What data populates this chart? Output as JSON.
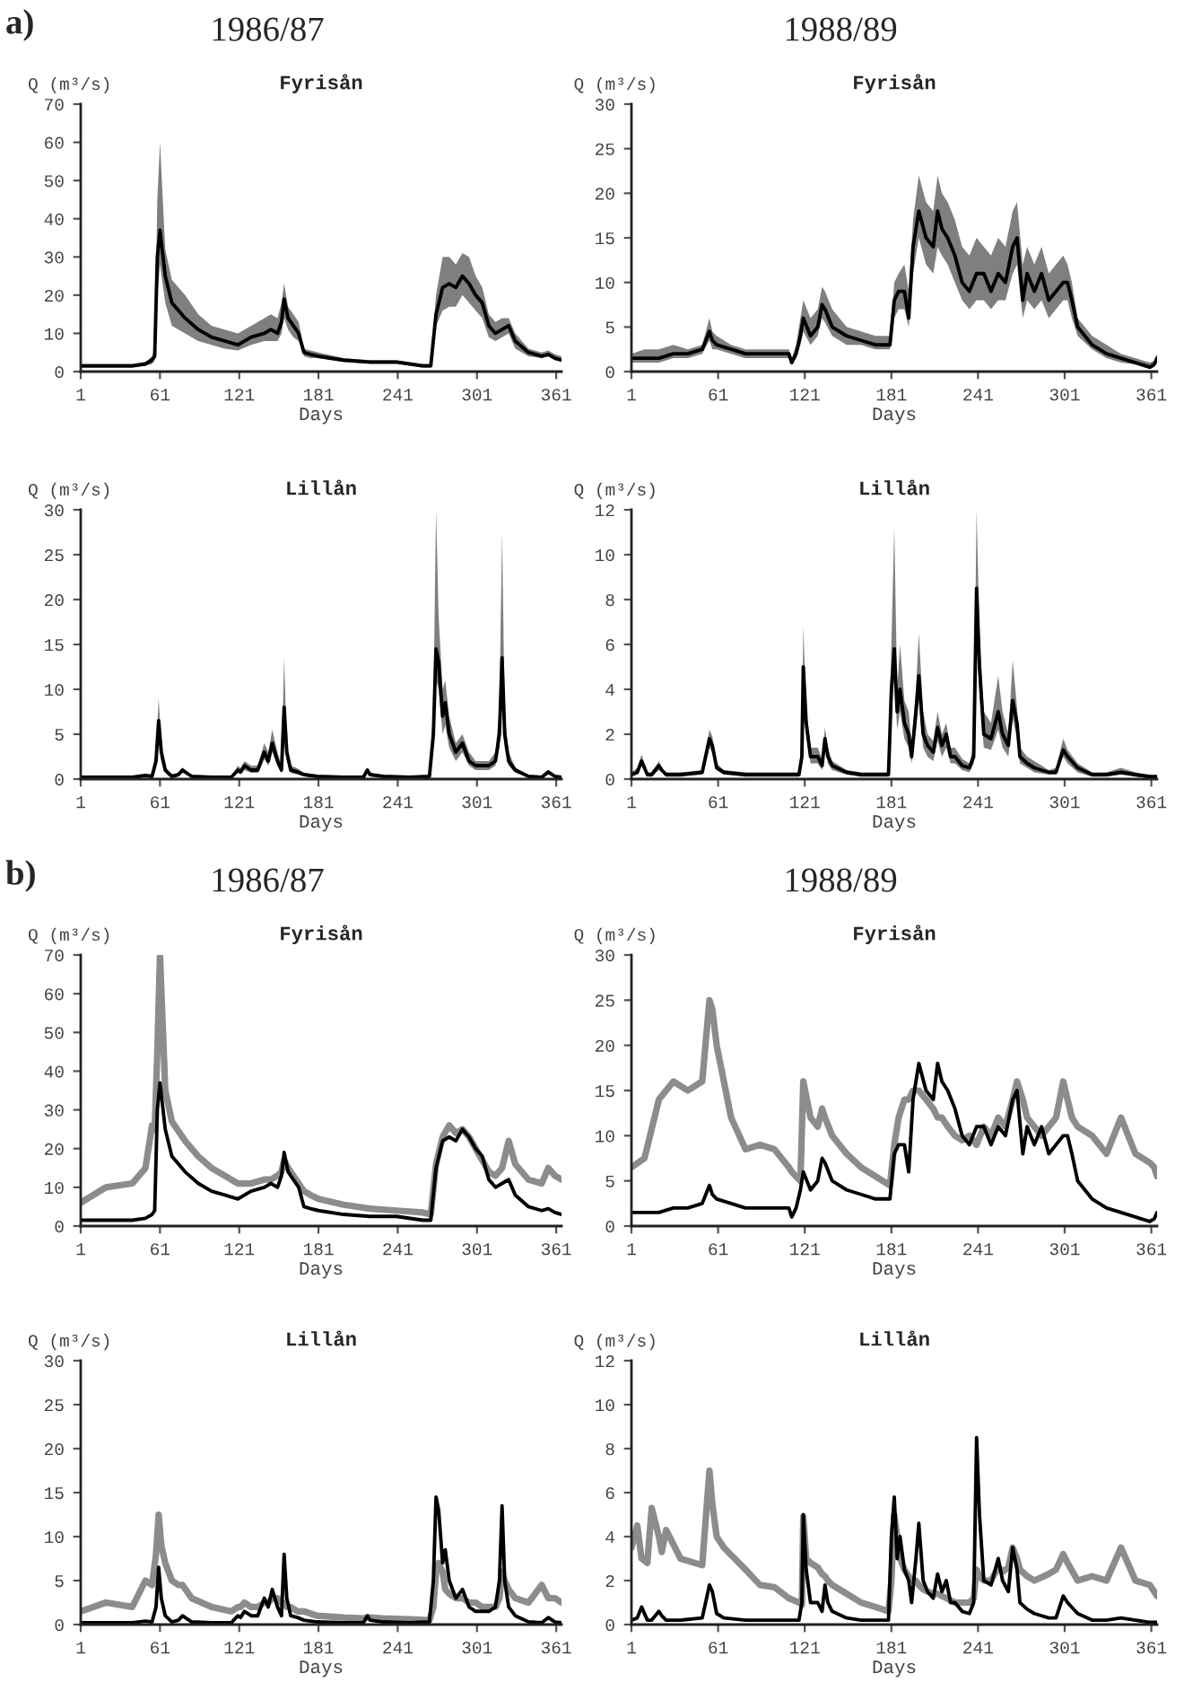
{
  "chart_data": [
    {
      "type": "line",
      "title": "Fyrisån",
      "xlabel": "Days",
      "ylabel": "Q (m³/s)",
      "annotations": [
        "a)",
        "1986/87"
      ],
      "x": [
        1,
        20,
        40,
        50,
        55,
        57,
        59,
        61,
        65,
        70,
        80,
        90,
        100,
        110,
        120,
        130,
        140,
        145,
        150,
        153,
        155,
        158,
        162,
        166,
        170,
        175,
        181,
        200,
        220,
        240,
        260,
        266,
        270,
        275,
        280,
        285,
        290,
        295,
        300,
        305,
        310,
        315,
        320,
        325,
        330,
        340,
        350,
        355,
        360,
        365
      ],
      "xlim": [
        1,
        365
      ],
      "xticks": [
        1,
        61,
        121,
        181,
        241,
        301,
        361
      ],
      "ylim": [
        0,
        70
      ],
      "yticks": [
        0,
        10,
        20,
        30,
        40,
        50,
        60,
        70
      ],
      "series": [
        {
          "color": "#000000",
          "values": [
            1.5,
            1.5,
            1.5,
            2,
            3,
            4,
            30,
            37,
            25,
            18,
            14,
            11,
            9,
            8,
            7,
            9,
            10,
            11,
            10,
            13,
            19,
            14,
            12,
            10,
            5,
            4.5,
            4,
            3,
            2.5,
            2.5,
            1.5,
            1.5,
            15,
            22,
            23,
            22,
            25,
            23,
            20,
            18,
            12,
            10,
            11,
            12,
            8,
            5,
            4,
            4.5,
            3.5,
            3
          ],
          "upper": [
            2,
            2,
            2,
            2.5,
            4,
            6,
            45,
            60,
            32,
            24,
            20,
            15,
            12,
            11,
            10,
            12,
            14,
            15,
            14,
            18,
            23,
            17,
            15,
            13,
            6,
            5.5,
            5,
            3.5,
            3,
            3,
            2,
            2,
            20,
            30,
            30,
            28,
            31,
            30,
            25,
            22,
            15,
            13,
            14,
            14,
            10,
            6,
            5,
            5.5,
            4.5,
            4
          ],
          "lower": [
            1,
            1,
            1,
            1.5,
            2,
            3,
            20,
            28,
            18,
            12,
            10,
            8,
            7,
            6,
            5.5,
            7,
            8,
            8,
            8,
            10,
            14,
            11,
            9,
            8,
            4,
            3.5,
            3.5,
            2.5,
            2,
            2,
            1,
            1,
            12,
            16,
            17,
            17,
            20,
            18,
            16,
            14,
            9,
            8,
            9,
            10,
            6,
            4,
            3.5,
            4,
            3,
            2.5
          ]
        }
      ]
    },
    {
      "type": "line",
      "title": "Fyrisån",
      "xlabel": "Days",
      "ylabel": "Q (m³/s)",
      "annotations": [
        "1988/89"
      ],
      "x": [
        1,
        10,
        20,
        30,
        40,
        50,
        55,
        57,
        60,
        70,
        80,
        90,
        100,
        110,
        112,
        115,
        118,
        120,
        125,
        130,
        133,
        135,
        140,
        150,
        160,
        170,
        180,
        183,
        186,
        190,
        193,
        196,
        200,
        205,
        210,
        213,
        216,
        220,
        225,
        230,
        235,
        240,
        245,
        250,
        255,
        260,
        265,
        268,
        272,
        275,
        280,
        285,
        290,
        295,
        300,
        303,
        306,
        310,
        320,
        330,
        340,
        350,
        360,
        363,
        365
      ],
      "xlim": [
        1,
        365
      ],
      "xticks": [
        1,
        61,
        121,
        181,
        241,
        301,
        361
      ],
      "ylim": [
        0,
        30
      ],
      "yticks": [
        0,
        5,
        10,
        15,
        20,
        25,
        30
      ],
      "series": [
        {
          "color": "#000000",
          "values": [
            1.5,
            1.5,
            1.5,
            2,
            2,
            2.5,
            4.5,
            3.5,
            3,
            2.5,
            2,
            2,
            2,
            2,
            1,
            2,
            4,
            6,
            4,
            5,
            7.5,
            7,
            5,
            4,
            3.5,
            3,
            3,
            8,
            9,
            9,
            6,
            14,
            18,
            15,
            14,
            18,
            16,
            15,
            13,
            10,
            9,
            11,
            11,
            9,
            11,
            10,
            14,
            15,
            8,
            11,
            9,
            11,
            8,
            9,
            10,
            10,
            8,
            5,
            3,
            2,
            1.5,
            1,
            0.5,
            0.8,
            1.5
          ],
          "upper": [
            2,
            2.5,
            2.5,
            3,
            2.5,
            3,
            6,
            4.5,
            4,
            3,
            2.5,
            2.5,
            2.5,
            2.5,
            1.5,
            3,
            6,
            8,
            6,
            7,
            9.5,
            9,
            7,
            5,
            4.5,
            4,
            4,
            10,
            11,
            12,
            9,
            17,
            22,
            19,
            18,
            22,
            20,
            19,
            17,
            14,
            13,
            15,
            14,
            13,
            15,
            14,
            18,
            19,
            12,
            14,
            12,
            14,
            11,
            12,
            13,
            12,
            10,
            6,
            4,
            3,
            2,
            1.5,
            1,
            1.2,
            2
          ],
          "lower": [
            1,
            1,
            1,
            1.5,
            1.5,
            2,
            3.5,
            2.5,
            2.5,
            2,
            1.5,
            1.5,
            1.5,
            1.5,
            0.8,
            1.5,
            3,
            4.5,
            3,
            4,
            6,
            5.5,
            4,
            3,
            3,
            2.5,
            2.5,
            6,
            7,
            7,
            5,
            11,
            15,
            12,
            11,
            14,
            13,
            12,
            10,
            8,
            7,
            8,
            8,
            7,
            8,
            8,
            11,
            12,
            6,
            8,
            7,
            8,
            6,
            7,
            8,
            8,
            6,
            4,
            2.5,
            1.5,
            1,
            0.8,
            0.3,
            0.5,
            1
          ]
        }
      ]
    },
    {
      "type": "line",
      "title": "Lillån",
      "xlabel": "Days",
      "ylabel": "Q (m³/s)",
      "x": [
        1,
        20,
        40,
        50,
        55,
        58,
        60,
        62,
        65,
        70,
        75,
        78,
        85,
        100,
        115,
        120,
        122,
        125,
        130,
        135,
        140,
        143,
        146,
        150,
        153,
        155,
        157,
        160,
        165,
        170,
        180,
        200,
        215,
        218,
        220,
        230,
        250,
        265,
        268,
        270,
        272,
        275,
        277,
        280,
        285,
        290,
        295,
        300,
        305,
        310,
        315,
        318,
        320,
        322,
        325,
        330,
        340,
        350,
        355,
        360,
        365
      ],
      "xlim": [
        1,
        365
      ],
      "xticks": [
        1,
        61,
        121,
        181,
        241,
        301,
        361
      ],
      "ylim": [
        0,
        30
      ],
      "yticks": [
        0,
        5,
        10,
        15,
        20,
        25,
        30
      ],
      "series": [
        {
          "color": "#000000",
          "values": [
            0.2,
            0.2,
            0.2,
            0.4,
            0.3,
            2,
            6.5,
            3,
            1,
            0.3,
            0.5,
            1,
            0.3,
            0.2,
            0.2,
            1,
            0.8,
            1.5,
            1,
            1,
            3,
            2,
            4,
            2,
            1,
            8,
            3,
            1,
            0.8,
            0.5,
            0.3,
            0.2,
            0.2,
            1,
            0.5,
            0.3,
            0.2,
            0.3,
            5,
            14.5,
            13,
            7,
            8.5,
            5,
            3,
            4,
            2,
            1.5,
            1.5,
            1.5,
            2,
            5,
            13.5,
            5,
            2,
            1,
            0.3,
            0.2,
            0.8,
            0.3,
            0.2
          ],
          "upper": [
            0.3,
            0.3,
            0.3,
            0.5,
            0.4,
            3,
            9,
            4,
            1.3,
            0.4,
            0.7,
            1.3,
            0.4,
            0.3,
            0.3,
            1.5,
            1.2,
            2,
            1.5,
            1.5,
            4,
            3,
            5.5,
            3,
            1.5,
            13.5,
            4,
            1.5,
            1.2,
            0.7,
            0.4,
            0.3,
            0.3,
            1.3,
            0.7,
            0.4,
            0.3,
            0.4,
            8,
            30,
            18,
            10,
            11,
            7,
            4,
            5,
            3,
            2,
            2,
            2,
            3,
            8,
            27.5,
            7,
            3,
            1.3,
            0.4,
            0.3,
            1,
            0.4,
            0.3
          ],
          "lower": [
            0.1,
            0.1,
            0.1,
            0.3,
            0.2,
            1.5,
            5,
            2,
            0.7,
            0.2,
            0.3,
            0.7,
            0.2,
            0.1,
            0.1,
            0.7,
            0.5,
            1,
            0.7,
            0.7,
            2.2,
            1.5,
            3,
            1.5,
            0.7,
            6,
            2,
            0.7,
            0.5,
            0.3,
            0.2,
            0.1,
            0.1,
            0.7,
            0.3,
            0.2,
            0.1,
            0.2,
            3.5,
            11,
            10,
            5,
            6,
            3.5,
            2,
            3,
            1.5,
            1,
            1,
            1,
            1.5,
            3.5,
            10,
            3.5,
            1.5,
            0.7,
            0.2,
            0.1,
            0.5,
            0.2,
            0.1
          ]
        }
      ]
    },
    {
      "type": "line",
      "title": "Lillån",
      "xlabel": "Days",
      "ylabel": "Q (m³/s)",
      "x": [
        1,
        5,
        8,
        12,
        15,
        20,
        22,
        25,
        35,
        50,
        55,
        57,
        60,
        65,
        80,
        90,
        100,
        110,
        117,
        119,
        120,
        122,
        125,
        130,
        133,
        135,
        137,
        140,
        150,
        160,
        170,
        179,
        181,
        183,
        185,
        187,
        190,
        193,
        195,
        198,
        200,
        203,
        206,
        210,
        213,
        216,
        219,
        222,
        225,
        230,
        235,
        238,
        240,
        242,
        245,
        250,
        255,
        258,
        262,
        265,
        268,
        270,
        275,
        280,
        290,
        295,
        300,
        303,
        310,
        320,
        330,
        340,
        350,
        360,
        365
      ],
      "xlim": [
        1,
        365
      ],
      "xticks": [
        1,
        61,
        121,
        181,
        241,
        301,
        361
      ],
      "ylim": [
        0,
        12
      ],
      "yticks": [
        0,
        2,
        4,
        6,
        8,
        10,
        12
      ],
      "series": [
        {
          "color": "#000000",
          "values": [
            0.2,
            0.3,
            0.8,
            0.2,
            0.2,
            0.6,
            0.4,
            0.2,
            0.2,
            0.3,
            1.8,
            1.5,
            0.5,
            0.3,
            0.2,
            0.2,
            0.2,
            0.2,
            0.2,
            1,
            5,
            2.5,
            1,
            1,
            0.6,
            1.8,
            1,
            0.6,
            0.3,
            0.2,
            0.2,
            0.2,
            4,
            5.8,
            3,
            4,
            2.5,
            2,
            1,
            3,
            4.6,
            2,
            1.5,
            1.2,
            2.3,
            1.5,
            2,
            1,
            1,
            0.6,
            0.5,
            1,
            8.5,
            5,
            2,
            1.8,
            3,
            2,
            1.5,
            3.5,
            2.5,
            1,
            0.7,
            0.5,
            0.3,
            0.3,
            1.3,
            1,
            0.5,
            0.2,
            0.2,
            0.3,
            0.2,
            0.1,
            0.1
          ],
          "upper": [
            0.3,
            0.5,
            1.1,
            0.3,
            0.3,
            0.8,
            0.5,
            0.3,
            0.3,
            0.4,
            2.2,
            1.9,
            0.7,
            0.4,
            0.3,
            0.3,
            0.3,
            0.3,
            0.3,
            1.5,
            6.8,
            3.2,
            1.4,
            1.4,
            0.9,
            2.3,
            1.4,
            0.8,
            0.4,
            0.3,
            0.3,
            0.3,
            6,
            11.2,
            4,
            6,
            3.5,
            3,
            1.5,
            4,
            6.5,
            3,
            2,
            1.7,
            3,
            2,
            2.5,
            1.4,
            1.4,
            0.9,
            0.7,
            1.5,
            12,
            6.5,
            3,
            2.5,
            4.6,
            3,
            2,
            5.3,
            3.2,
            1.4,
            1,
            0.8,
            0.4,
            0.5,
            1.8,
            1.3,
            0.7,
            0.3,
            0.3,
            0.5,
            0.3,
            0.2,
            0.2
          ],
          "lower": [
            0.1,
            0.2,
            0.6,
            0.1,
            0.1,
            0.4,
            0.3,
            0.1,
            0.1,
            0.2,
            1.4,
            1.2,
            0.4,
            0.2,
            0.1,
            0.1,
            0.1,
            0.1,
            0.1,
            0.7,
            4,
            2,
            0.7,
            0.7,
            0.4,
            1.4,
            0.7,
            0.4,
            0.2,
            0.1,
            0.1,
            0.1,
            3,
            4.5,
            2.2,
            3,
            1.8,
            1.4,
            0.7,
            2.2,
            3.5,
            1.4,
            1,
            0.8,
            1.7,
            1,
            1.4,
            0.7,
            0.7,
            0.4,
            0.3,
            0.7,
            6.5,
            3.8,
            1.4,
            1.3,
            2.2,
            1.4,
            1,
            2.7,
            1.8,
            0.7,
            0.5,
            0.3,
            0.2,
            0.2,
            1,
            0.7,
            0.3,
            0.1,
            0.1,
            0.2,
            0.1,
            0.05,
            0.05
          ]
        }
      ]
    },
    {
      "type": "line",
      "title": "Fyrisån",
      "xlabel": "Days",
      "ylabel": "Q (m³/s)",
      "annotations": [
        "b)",
        "1986/87"
      ],
      "x": [
        1,
        20,
        40,
        50,
        55,
        57,
        59,
        61,
        65,
        70,
        80,
        90,
        100,
        110,
        120,
        130,
        140,
        145,
        150,
        153,
        155,
        158,
        162,
        166,
        170,
        175,
        181,
        200,
        220,
        240,
        260,
        266,
        270,
        275,
        280,
        285,
        290,
        295,
        300,
        305,
        310,
        315,
        320,
        325,
        330,
        340,
        350,
        355,
        360,
        365
      ],
      "xlim": [
        1,
        365
      ],
      "xticks": [
        1,
        61,
        121,
        181,
        241,
        301,
        361
      ],
      "ylim": [
        0,
        70
      ],
      "yticks": [
        0,
        10,
        20,
        30,
        40,
        50,
        60,
        70
      ],
      "series": [
        {
          "color": "#8c8c8c",
          "values": [
            6,
            10,
            11,
            15,
            26,
            25,
            45,
            70,
            35,
            27,
            22,
            18,
            15,
            13,
            11,
            11,
            12,
            12,
            13,
            14,
            17,
            15,
            13,
            11,
            9,
            8,
            7,
            5.5,
            4.5,
            4,
            3.5,
            3,
            16,
            23,
            26,
            24,
            25,
            23,
            20,
            17,
            14,
            13,
            15,
            22,
            16,
            12,
            11,
            15,
            13,
            12
          ]
        },
        {
          "color": "#000000",
          "values": [
            1.5,
            1.5,
            1.5,
            2,
            3,
            4,
            30,
            37,
            25,
            18,
            14,
            11,
            9,
            8,
            7,
            9,
            10,
            11,
            10,
            13,
            19,
            14,
            12,
            10,
            5,
            4.5,
            4,
            3,
            2.5,
            2.5,
            1.5,
            1.5,
            15,
            22,
            23,
            22,
            25,
            23,
            20,
            18,
            12,
            10,
            11,
            12,
            8,
            5,
            4,
            4.5,
            3.5,
            3
          ]
        }
      ]
    },
    {
      "type": "line",
      "title": "Fyrisån",
      "xlabel": "Days",
      "ylabel": "Q (m³/s)",
      "annotations": [
        "1988/89"
      ],
      "x": [
        1,
        10,
        20,
        30,
        40,
        50,
        55,
        57,
        60,
        70,
        80,
        90,
        100,
        110,
        112,
        115,
        118,
        120,
        125,
        130,
        133,
        135,
        140,
        150,
        160,
        170,
        180,
        183,
        186,
        190,
        193,
        196,
        200,
        205,
        210,
        213,
        216,
        220,
        225,
        230,
        235,
        240,
        245,
        250,
        255,
        260,
        265,
        268,
        272,
        275,
        280,
        285,
        290,
        295,
        300,
        303,
        306,
        310,
        320,
        330,
        340,
        350,
        360,
        363,
        365
      ],
      "xlim": [
        1,
        365
      ],
      "xticks": [
        1,
        61,
        121,
        181,
        241,
        301,
        361
      ],
      "ylim": [
        0,
        30
      ],
      "yticks": [
        0,
        5,
        10,
        15,
        20,
        25,
        30
      ],
      "series": [
        {
          "color": "#8c8c8c",
          "values": [
            6.5,
            7.5,
            14,
            16,
            15,
            16,
            25,
            24,
            20,
            12,
            8.5,
            9,
            8.5,
            6.5,
            6,
            5.5,
            5,
            16,
            12,
            11,
            13,
            12,
            10,
            8,
            6.5,
            5.5,
            4.5,
            9,
            12,
            14,
            14,
            15,
            15,
            14,
            13,
            12,
            12,
            11,
            10,
            9.5,
            10,
            9,
            11,
            10,
            12,
            11,
            14,
            16,
            14,
            12,
            11,
            10,
            11,
            12,
            16,
            14,
            12,
            11,
            10,
            8,
            12,
            8,
            7,
            6.5,
            5.5
          ]
        },
        {
          "color": "#000000",
          "values": [
            1.5,
            1.5,
            1.5,
            2,
            2,
            2.5,
            4.5,
            3.5,
            3,
            2.5,
            2,
            2,
            2,
            2,
            1,
            2,
            4,
            6,
            4,
            5,
            7.5,
            7,
            5,
            4,
            3.5,
            3,
            3,
            8,
            9,
            9,
            6,
            14,
            18,
            15,
            14,
            18,
            16,
            15,
            13,
            10,
            9,
            11,
            11,
            9,
            11,
            10,
            14,
            15,
            8,
            11,
            9,
            11,
            8,
            9,
            10,
            10,
            8,
            5,
            3,
            2,
            1.5,
            1,
            0.5,
            0.8,
            1.5
          ]
        }
      ]
    },
    {
      "type": "line",
      "title": "Lillån",
      "xlabel": "Days",
      "ylabel": "Q (m³/s)",
      "x": [
        1,
        20,
        40,
        50,
        55,
        58,
        60,
        62,
        65,
        70,
        75,
        78,
        85,
        100,
        115,
        120,
        122,
        125,
        130,
        135,
        140,
        143,
        146,
        150,
        153,
        155,
        157,
        160,
        165,
        170,
        180,
        200,
        215,
        218,
        220,
        230,
        250,
        265,
        268,
        270,
        272,
        275,
        277,
        280,
        285,
        290,
        295,
        300,
        305,
        310,
        315,
        318,
        320,
        322,
        325,
        330,
        340,
        350,
        355,
        360,
        365
      ],
      "xlim": [
        1,
        365
      ],
      "xticks": [
        1,
        61,
        121,
        181,
        241,
        301,
        361
      ],
      "ylim": [
        0,
        30
      ],
      "yticks": [
        0,
        5,
        10,
        15,
        20,
        25,
        30
      ],
      "series": [
        {
          "color": "#8c8c8c",
          "values": [
            1.5,
            2.5,
            2,
            5,
            4.5,
            8,
            12.5,
            9,
            7,
            5,
            4.5,
            4.5,
            3,
            2,
            1.5,
            2,
            2,
            2.5,
            2,
            2,
            2.5,
            2.5,
            3,
            3,
            2.5,
            2.5,
            2,
            2,
            1.5,
            1.5,
            1,
            0.8,
            0.7,
            0.8,
            0.8,
            0.7,
            0.6,
            0.5,
            2,
            6,
            7,
            6,
            4,
            3.5,
            3,
            3,
            2.5,
            2.5,
            2,
            2,
            2,
            3,
            6,
            5,
            4,
            3,
            2.5,
            4.5,
            3,
            3,
            2.5
          ]
        },
        {
          "color": "#000000",
          "values": [
            0.2,
            0.2,
            0.2,
            0.4,
            0.3,
            2,
            6.5,
            3,
            1,
            0.3,
            0.5,
            1,
            0.3,
            0.2,
            0.2,
            1,
            0.8,
            1.5,
            1,
            1,
            3,
            2,
            4,
            2,
            1,
            8,
            3,
            1,
            0.8,
            0.5,
            0.3,
            0.2,
            0.2,
            1,
            0.5,
            0.3,
            0.2,
            0.3,
            5,
            14.5,
            13,
            7,
            8.5,
            5,
            3,
            4,
            2,
            1.5,
            1.5,
            1.5,
            2,
            5,
            13.5,
            5,
            2,
            1,
            0.3,
            0.2,
            0.8,
            0.3,
            0.2
          ]
        }
      ]
    },
    {
      "type": "line",
      "title": "Lillån",
      "xlabel": "Days",
      "ylabel": "Q (m³/s)",
      "x": [
        1,
        5,
        8,
        12,
        15,
        20,
        22,
        25,
        35,
        50,
        55,
        57,
        60,
        65,
        80,
        90,
        100,
        110,
        117,
        119,
        120,
        122,
        125,
        130,
        133,
        135,
        137,
        140,
        150,
        160,
        170,
        179,
        181,
        183,
        185,
        187,
        190,
        193,
        195,
        198,
        200,
        203,
        206,
        210,
        213,
        216,
        219,
        222,
        225,
        230,
        235,
        238,
        240,
        242,
        245,
        250,
        255,
        258,
        262,
        265,
        268,
        270,
        275,
        280,
        290,
        295,
        300,
        303,
        310,
        320,
        330,
        340,
        350,
        360,
        365
      ],
      "xlim": [
        1,
        365
      ],
      "xticks": [
        1,
        61,
        121,
        181,
        241,
        301,
        361
      ],
      "ylim": [
        0,
        12
      ],
      "yticks": [
        0,
        2,
        4,
        6,
        8,
        10,
        12
      ],
      "series": [
        {
          "color": "#8c8c8c",
          "values": [
            3.5,
            4.5,
            3,
            2.8,
            5.3,
            4,
            3.3,
            4.3,
            3,
            2.7,
            7,
            5.5,
            4,
            3.5,
            2.5,
            1.8,
            1.7,
            1.2,
            1,
            0.9,
            4.9,
            3,
            2.8,
            2.6,
            2.3,
            2.2,
            2,
            1.8,
            1.4,
            1,
            0.8,
            0.6,
            2,
            5,
            4,
            3,
            2.5,
            2.2,
            2,
            2,
            1.8,
            1.6,
            1.5,
            1.4,
            1.4,
            1.3,
            1.2,
            1.1,
            1,
            1,
            1,
            1.2,
            2.5,
            2.2,
            2,
            2,
            2.6,
            2.4,
            2.6,
            3.5,
            3,
            2.5,
            2.2,
            2,
            2.3,
            2.5,
            3.2,
            2.8,
            2,
            2.2,
            2,
            3.5,
            2,
            1.8,
            1.3
          ]
        },
        {
          "color": "#000000",
          "values": [
            0.2,
            0.3,
            0.8,
            0.2,
            0.2,
            0.6,
            0.4,
            0.2,
            0.2,
            0.3,
            1.8,
            1.5,
            0.5,
            0.3,
            0.2,
            0.2,
            0.2,
            0.2,
            0.2,
            1,
            5,
            2.5,
            1,
            1,
            0.6,
            1.8,
            1,
            0.6,
            0.3,
            0.2,
            0.2,
            0.2,
            4,
            5.8,
            3,
            4,
            2.5,
            2,
            1,
            3,
            4.6,
            2,
            1.5,
            1.2,
            2.3,
            1.5,
            2,
            1,
            1,
            0.6,
            0.5,
            1,
            8.5,
            5,
            2,
            1.8,
            3,
            2,
            1.5,
            3.5,
            2.5,
            1,
            0.7,
            0.5,
            0.3,
            0.3,
            1.3,
            1,
            0.5,
            0.2,
            0.2,
            0.3,
            0.2,
            0.1,
            0.1
          ]
        }
      ]
    }
  ]
}
